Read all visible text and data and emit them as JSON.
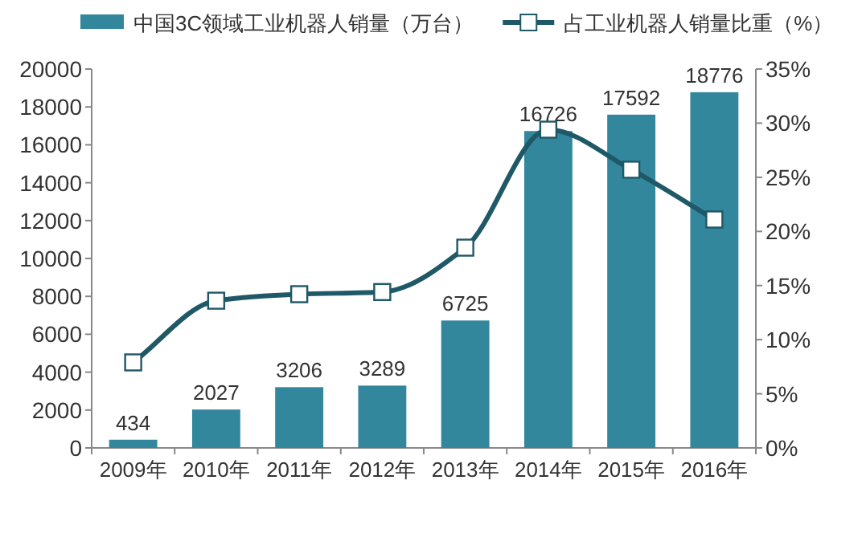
{
  "chart_data": {
    "type": "bar",
    "categories": [
      "2009年",
      "2010年",
      "2011年",
      "2012年",
      "2013年",
      "2014年",
      "2015年",
      "2016年"
    ],
    "series": [
      {
        "name": "中国3C领域工业机器人销量（万台）",
        "color": "#33879d",
        "values": [
          434,
          2027,
          3206,
          3289,
          6725,
          16726,
          17592,
          18776
        ],
        "value_labels": [
          "434",
          "2027",
          "3206",
          "3289",
          "6725",
          "16726",
          "17592",
          "18776"
        ]
      },
      {
        "name": "占工业机器人销量比重（%）",
        "type": "line",
        "axis": "y2",
        "color": "#1f5866",
        "marker": "square",
        "values": [
          7.9,
          13.6,
          14.2,
          14.4,
          18.5,
          29.4,
          25.7,
          21.1
        ]
      }
    ],
    "legend": "top",
    "grid": false,
    "ylim": [
      0,
      20000
    ],
    "yticks": [
      0,
      2000,
      4000,
      6000,
      8000,
      10000,
      12000,
      14000,
      16000,
      18000,
      20000
    ],
    "y2lim": [
      0,
      35
    ],
    "y2ticks": [
      {
        "value": 0,
        "label": "0%"
      },
      {
        "value": 5,
        "label": "5%"
      },
      {
        "value": 10,
        "label": "10%"
      },
      {
        "value": 15,
        "label": "15%"
      },
      {
        "value": 20,
        "label": "20%"
      },
      {
        "value": 25,
        "label": "25%"
      },
      {
        "value": 30,
        "label": "30%"
      },
      {
        "value": 35,
        "label": "35%"
      }
    ]
  }
}
